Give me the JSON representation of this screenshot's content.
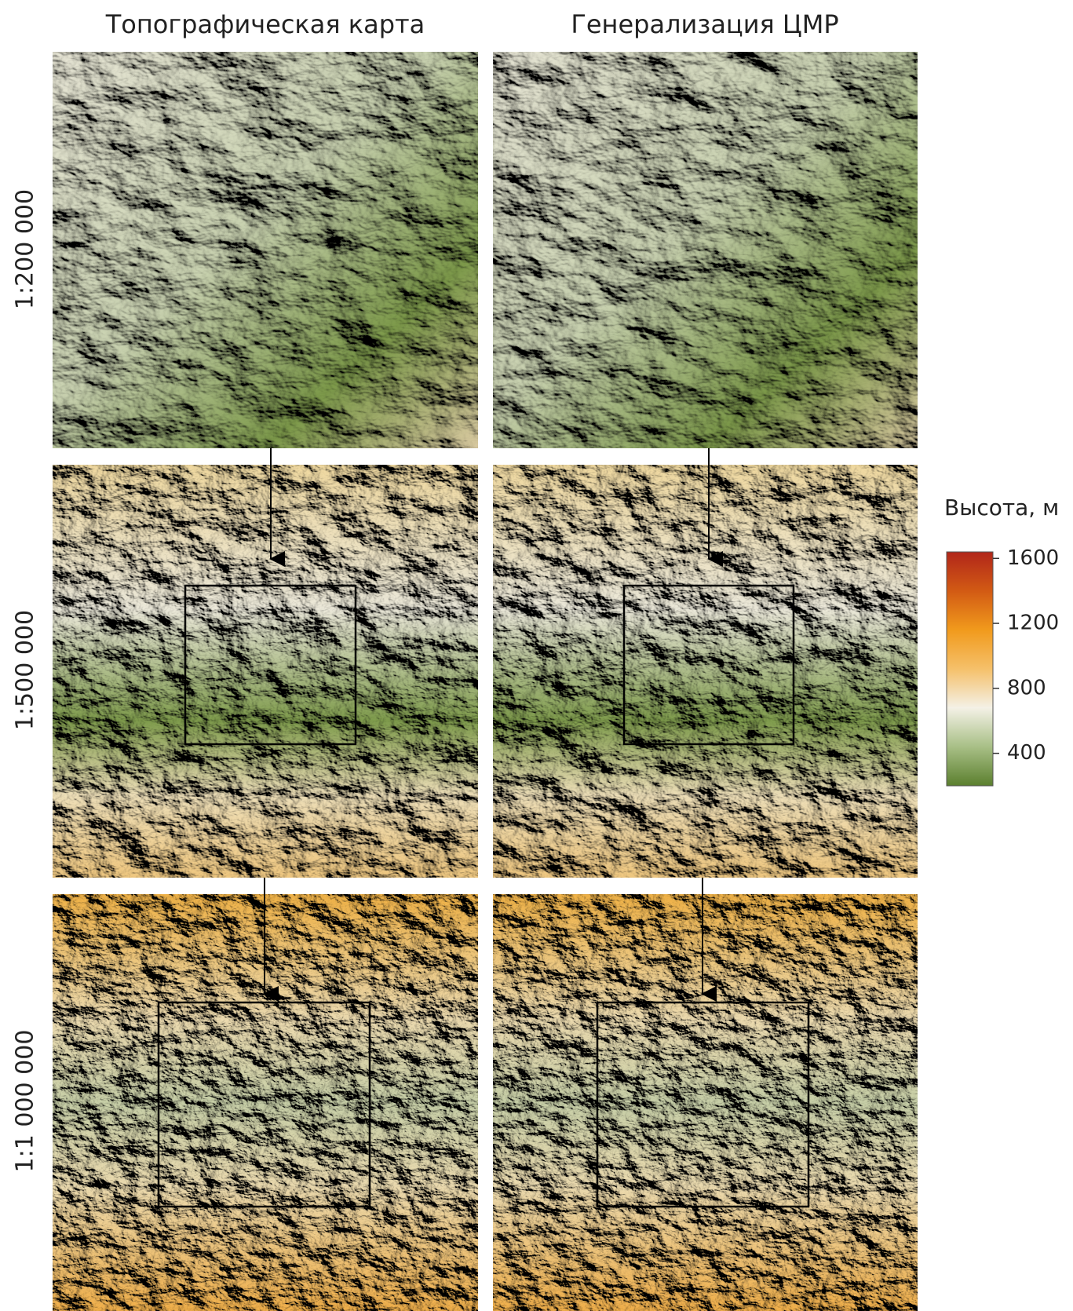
{
  "columns": [
    "Топографическая карта",
    "Генерализация ЦМР"
  ],
  "rows": [
    "1:200 000",
    "1:500 000",
    "1:1 000 000"
  ],
  "legend": {
    "title": "Высота, м",
    "ticks": [
      1600,
      1200,
      800,
      400
    ],
    "range": [
      200,
      1640
    ],
    "colors": [
      "#5b7f2e",
      "#a8bf86",
      "#f4f1e6",
      "#f5c06a",
      "#f19a1c",
      "#d25a14",
      "#b1261a"
    ]
  }
}
